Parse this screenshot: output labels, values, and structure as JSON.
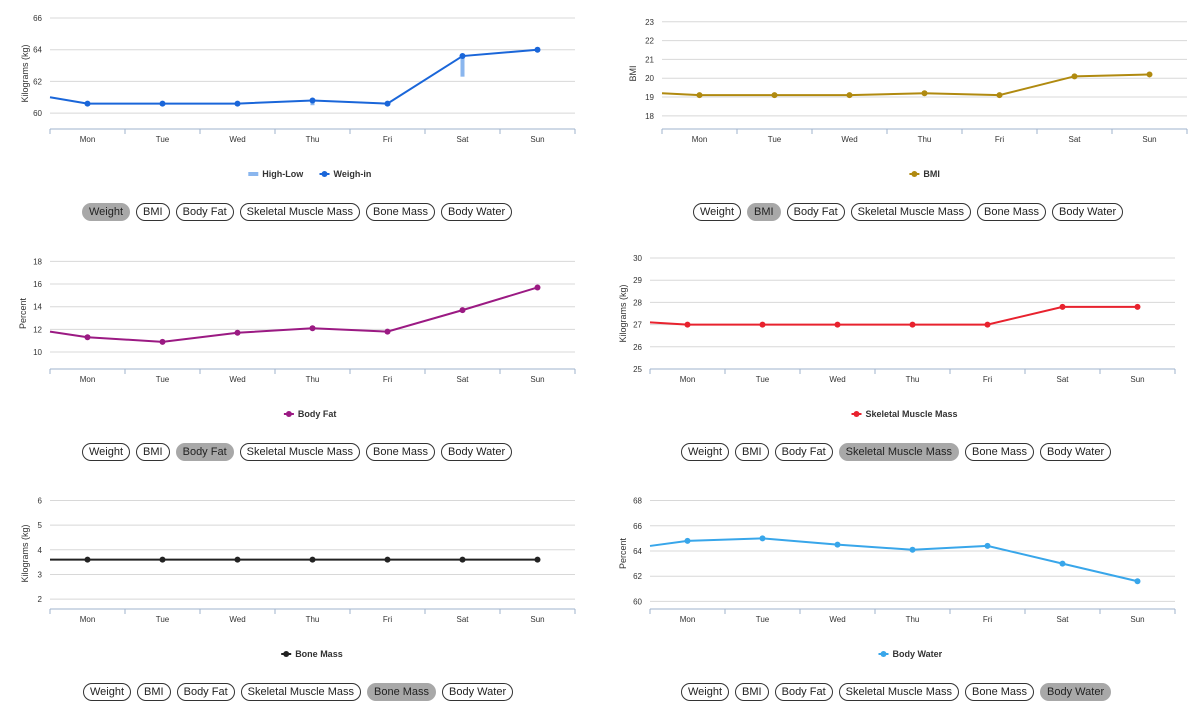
{
  "days": [
    "Mon",
    "Tue",
    "Wed",
    "Thu",
    "Fri",
    "Sat",
    "Sun"
  ],
  "tabs": [
    "Weight",
    "BMI",
    "Body Fat",
    "Skeletal Muscle Mass",
    "Bone Mass",
    "Body Water"
  ],
  "chart_data": [
    {
      "type": "line",
      "title": "",
      "ylabel": "Kilograms (kg)",
      "ylim": [
        59,
        66
      ],
      "yticks": [
        60,
        62,
        64,
        66
      ],
      "categories": [
        "Mon",
        "Tue",
        "Wed",
        "Thu",
        "Fri",
        "Sat",
        "Sun"
      ],
      "start_value": 61.0,
      "series": [
        {
          "name": "Weigh-in",
          "color": "#1a66d9",
          "values": [
            60.6,
            60.6,
            60.6,
            60.8,
            60.6,
            63.6,
            64.0
          ]
        }
      ],
      "high_low": {
        "name": "High-Low",
        "color": "#8ab6ee",
        "ranges": [
          null,
          null,
          null,
          [
            60.5,
            60.8
          ],
          null,
          [
            62.3,
            63.6
          ],
          null
        ]
      },
      "legend": [
        "High-Low",
        "Weigh-in"
      ],
      "active_tab": 0
    },
    {
      "type": "line",
      "title": "",
      "ylabel": "BMI",
      "ylim": [
        17.3,
        23.2
      ],
      "yticks": [
        18,
        19,
        20,
        21,
        22,
        23
      ],
      "categories": [
        "Mon",
        "Tue",
        "Wed",
        "Thu",
        "Fri",
        "Sat",
        "Sun"
      ],
      "start_value": 19.2,
      "series": [
        {
          "name": "BMI",
          "color": "#b08a10",
          "values": [
            19.1,
            19.1,
            19.1,
            19.2,
            19.1,
            20.1,
            20.2
          ]
        }
      ],
      "legend": [
        "BMI"
      ],
      "active_tab": 1
    },
    {
      "type": "line",
      "title": "",
      "ylabel": "Percent",
      "ylim": [
        8.5,
        18.3
      ],
      "yticks": [
        10,
        12,
        14,
        16,
        18
      ],
      "categories": [
        "Mon",
        "Tue",
        "Wed",
        "Thu",
        "Fri",
        "Sat",
        "Sun"
      ],
      "start_value": 11.8,
      "series": [
        {
          "name": "Body Fat",
          "color": "#9b1a83",
          "values": [
            11.3,
            10.9,
            11.7,
            12.1,
            11.8,
            13.7,
            15.7
          ]
        }
      ],
      "legend": [
        "Body Fat"
      ],
      "active_tab": 2
    },
    {
      "type": "line",
      "title": "",
      "ylabel": "Kilograms (kg)",
      "ylim": [
        25,
        30
      ],
      "yticks": [
        25,
        26,
        27,
        28,
        29,
        30
      ],
      "categories": [
        "Mon",
        "Tue",
        "Wed",
        "Thu",
        "Fri",
        "Sat",
        "Sun"
      ],
      "start_value": 27.1,
      "series": [
        {
          "name": "Skeletal Muscle Mass",
          "color": "#e8222e",
          "values": [
            27.0,
            27.0,
            27.0,
            27.0,
            27.0,
            27.8,
            27.8
          ]
        }
      ],
      "legend": [
        "Skeletal Muscle Mass"
      ],
      "active_tab": 3
    },
    {
      "type": "line",
      "title": "",
      "ylabel": "Kilograms (kg)",
      "ylim": [
        1.6,
        6.1
      ],
      "yticks": [
        2,
        3,
        4,
        5,
        6
      ],
      "categories": [
        "Mon",
        "Tue",
        "Wed",
        "Thu",
        "Fri",
        "Sat",
        "Sun"
      ],
      "start_value": 3.6,
      "series": [
        {
          "name": "Bone Mass",
          "color": "#222222",
          "values": [
            3.6,
            3.6,
            3.6,
            3.6,
            3.6,
            3.6,
            3.6
          ]
        }
      ],
      "legend": [
        "Bone Mass"
      ],
      "active_tab": 4
    },
    {
      "type": "line",
      "title": "",
      "ylabel": "Percent",
      "ylim": [
        59.4,
        68.2
      ],
      "yticks": [
        60,
        62,
        64,
        66,
        68
      ],
      "categories": [
        "Mon",
        "Tue",
        "Wed",
        "Thu",
        "Fri",
        "Sat",
        "Sun"
      ],
      "start_value": 64.4,
      "series": [
        {
          "name": "Body Water",
          "color": "#38a6ea",
          "values": [
            64.8,
            65.0,
            64.5,
            64.1,
            64.4,
            63.0,
            61.6
          ]
        }
      ],
      "legend": [
        "Body Water"
      ],
      "active_tab": 5
    }
  ]
}
